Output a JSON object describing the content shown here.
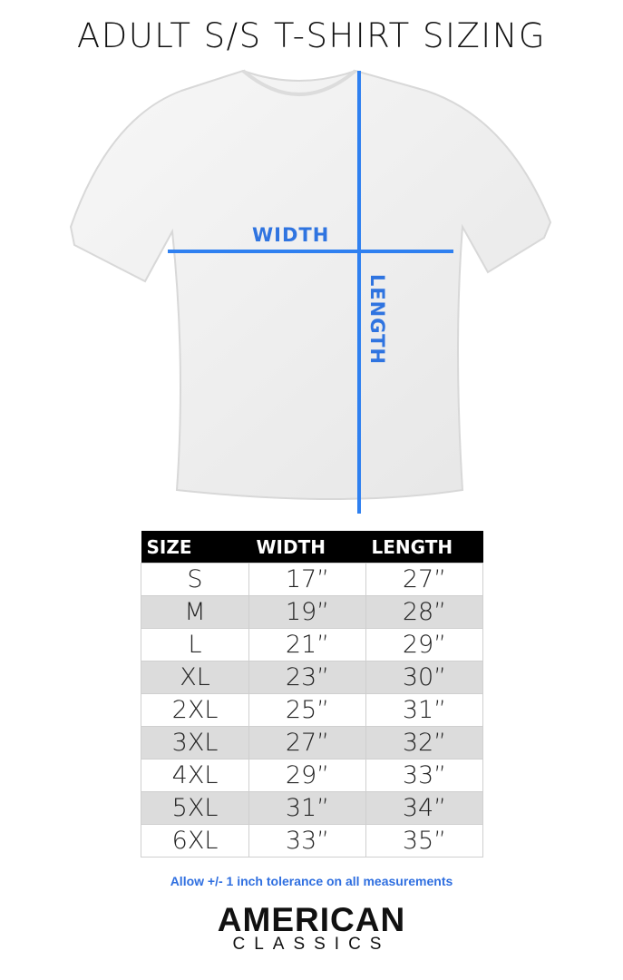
{
  "title": "ADULT S/S T-SHIRT SIZING",
  "diagram": {
    "width_label": "WIDTH",
    "length_label": "LENGTH",
    "line_color": "#2f80f0"
  },
  "table": {
    "headers": [
      "SIZE",
      "WIDTH",
      "LENGTH"
    ],
    "rows": [
      [
        "S",
        "17”",
        "27”"
      ],
      [
        "M",
        "19”",
        "28”"
      ],
      [
        "L",
        "21”",
        "29”"
      ],
      [
        "XL",
        "23”",
        "30”"
      ],
      [
        "2XL",
        "25”",
        "31”"
      ],
      [
        "3XL",
        "27”",
        "32”"
      ],
      [
        "4XL",
        "29”",
        "33”"
      ],
      [
        "5XL",
        "31”",
        "34”"
      ],
      [
        "6XL",
        "33”",
        "35”"
      ]
    ]
  },
  "note": "Allow +/- 1 inch tolerance on all measurements",
  "logo": {
    "line1": "AMERICAN",
    "line2": "CLASSICS"
  }
}
